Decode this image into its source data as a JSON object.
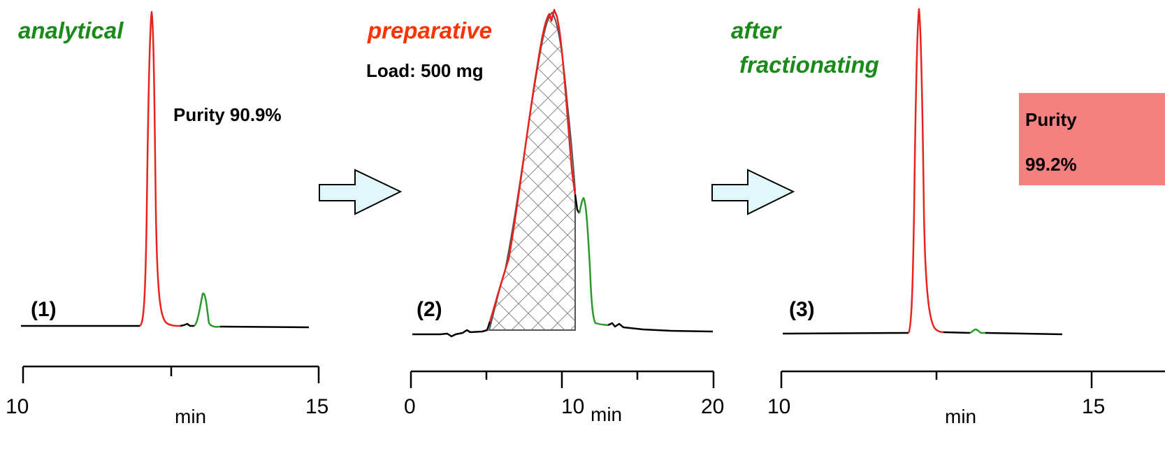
{
  "colors": {
    "main_peak": "#e8231b",
    "impurity": "#2a9a2a",
    "baseline": "#000000",
    "title_green": "#1a8a1a",
    "title_red": "#ff3300",
    "purity_box": "#f58080",
    "arrow_fill": "#e0f8fb"
  },
  "panels": [
    {
      "title": [
        "analytical"
      ],
      "title_color": "green",
      "note": "Purity 90.9%",
      "label": "(1)",
      "axis": {
        "ticks": [
          "10",
          "15"
        ],
        "unit": "min"
      }
    },
    {
      "title": [
        "preparative"
      ],
      "title_color": "red",
      "note": "Load: 500 mg",
      "label": "(2)",
      "axis": {
        "ticks": [
          "0",
          "10",
          "20"
        ],
        "unit": "min"
      }
    },
    {
      "title": [
        "after",
        "fractionating"
      ],
      "title_color": "green",
      "note_box": [
        "Purity",
        "99.2%"
      ],
      "label": "(3)",
      "axis": {
        "ticks": [
          "10",
          "15"
        ],
        "unit": "min"
      }
    }
  ],
  "chart_data": [
    {
      "type": "line",
      "title": "analytical",
      "xlabel": "min",
      "xlim": [
        10,
        15
      ],
      "annotation": "Purity 90.9%",
      "series": [
        {
          "segment": "baseline",
          "x": [
            10.0,
            12.0
          ],
          "y": [
            0,
            0
          ]
        },
        {
          "segment": "main-peak",
          "x": [
            12.0,
            12.25,
            12.35,
            12.45,
            12.6,
            12.9
          ],
          "y": [
            0,
            2,
            100,
            5,
            1,
            0
          ]
        },
        {
          "segment": "minor-peak",
          "x": [
            13.0,
            13.3,
            13.55
          ],
          "y": [
            0,
            11,
            0
          ]
        },
        {
          "segment": "baseline",
          "x": [
            13.55,
            15.0
          ],
          "y": [
            0,
            0
          ]
        }
      ]
    },
    {
      "type": "area",
      "title": "preparative",
      "xlabel": "min",
      "xlim": [
        0,
        20
      ],
      "annotation": "Load: 500 mg",
      "series": [
        {
          "segment": "collected-fraction",
          "x": [
            5.0,
            6.0,
            7.5,
            8.5,
            9.5,
            10.5,
            11.0
          ],
          "y": [
            2,
            20,
            60,
            90,
            100,
            70,
            52
          ]
        },
        {
          "segment": "minor-peak",
          "x": [
            11.0,
            11.4,
            11.7,
            12.5,
            13.5
          ],
          "y": [
            36,
            40,
            38,
            2,
            0
          ]
        }
      ]
    },
    {
      "type": "line",
      "title": "after fractionating",
      "xlabel": "min",
      "xlim": [
        10,
        15
      ],
      "annotation": "Purity 99.2%",
      "series": [
        {
          "segment": "baseline",
          "x": [
            10.0,
            12.1
          ],
          "y": [
            0,
            0
          ]
        },
        {
          "segment": "main-peak",
          "x": [
            12.1,
            12.45,
            12.6,
            12.75,
            13.0
          ],
          "y": [
            0,
            60,
            100,
            40,
            0
          ]
        },
        {
          "segment": "minor-peak",
          "x": [
            13.3,
            13.5,
            13.7
          ],
          "y": [
            0,
            1,
            0
          ]
        },
        {
          "segment": "baseline",
          "x": [
            13.7,
            15.0
          ],
          "y": [
            0,
            0
          ]
        }
      ]
    }
  ]
}
